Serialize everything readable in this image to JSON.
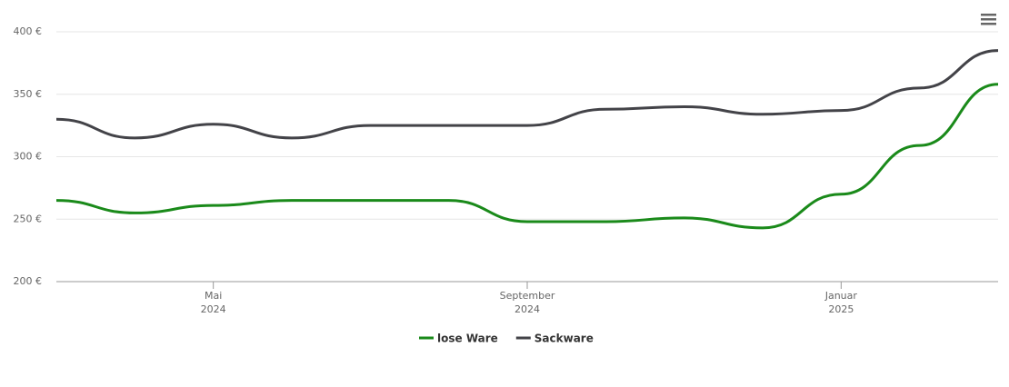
{
  "chart_data": {
    "type": "line",
    "x": [
      "2024-03",
      "2024-04",
      "2024-05",
      "2024-06",
      "2024-07",
      "2024-08",
      "2024-09",
      "2024-10",
      "2024-11",
      "2024-12",
      "2025-01",
      "2025-02",
      "2025-03"
    ],
    "series": [
      {
        "name": "lose Ware",
        "color": "#1a8a1a",
        "values": [
          265,
          255,
          261,
          265,
          265,
          265,
          248,
          248,
          251,
          243,
          270,
          309,
          358
        ]
      },
      {
        "name": "Sackware",
        "color": "#434348",
        "values": [
          330,
          315,
          326,
          315,
          325,
          325,
          325,
          338,
          340,
          334,
          337,
          355,
          385
        ]
      }
    ],
    "xlim": [
      "2024-03",
      "2025-03"
    ],
    "xticks": [
      {
        "value": "2024-05",
        "label": [
          "Mai",
          "2024"
        ]
      },
      {
        "value": "2024-09",
        "label": [
          "September",
          "2024"
        ]
      },
      {
        "value": "2025-01",
        "label": [
          "Januar",
          "2025"
        ]
      }
    ],
    "ylim": [
      200,
      400
    ],
    "yticks": [
      {
        "value": 200,
        "label": "200 €"
      },
      {
        "value": 250,
        "label": "250 €"
      },
      {
        "value": 300,
        "label": "300 €"
      },
      {
        "value": 350,
        "label": "350 €"
      },
      {
        "value": 400,
        "label": "400 €"
      }
    ],
    "grid": true,
    "legend": "bottom"
  }
}
